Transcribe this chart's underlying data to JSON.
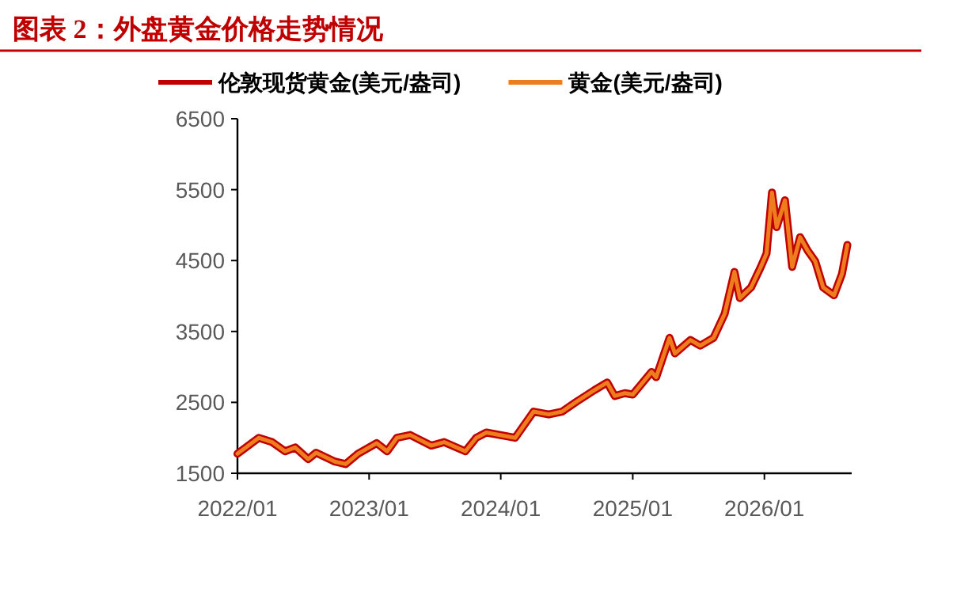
{
  "chart_data": {
    "type": "line",
    "title": "图表 2：外盘黄金价格走势情况",
    "x": [
      "2022-01-01",
      "2022-03-01",
      "2022-04-07",
      "2022-05-13",
      "2022-06-10",
      "2022-07-16",
      "2022-08-07",
      "2022-09-28",
      "2022-10-28",
      "2022-12-01",
      "2023-01-22",
      "2023-02-20",
      "2023-03-19",
      "2023-04-25",
      "2023-06-22",
      "2023-07-28",
      "2023-09-25",
      "2023-10-25",
      "2023-11-22",
      "2024-02-10",
      "2024-04-01",
      "2024-05-13",
      "2024-06-19",
      "2024-08-01",
      "2024-09-16",
      "2024-10-22",
      "2024-11-12",
      "2024-12-10",
      "2025-01-01",
      "2025-02-22",
      "2025-03-07",
      "2025-04-13",
      "2025-04-28",
      "2025-06-10",
      "2025-07-07",
      "2025-08-13",
      "2025-09-13",
      "2025-10-10",
      "2025-10-25",
      "2025-11-25",
      "2025-12-22",
      "2026-01-07",
      "2026-01-22",
      "2026-02-04",
      "2026-02-27",
      "2026-03-19",
      "2026-04-10",
      "2026-05-01",
      "2026-05-22",
      "2026-06-13",
      "2026-07-13",
      "2026-08-04",
      "2026-08-19"
    ],
    "series": [
      {
        "name": "伦敦现货黄金(美元/盎司)",
        "color": "#c00000",
        "values": [
          1775,
          2000,
          1940,
          1810,
          1865,
          1700,
          1790,
          1665,
          1630,
          1775,
          1925,
          1810,
          2000,
          2040,
          1890,
          1940,
          1810,
          2000,
          2075,
          2000,
          2370,
          2330,
          2370,
          2520,
          2670,
          2780,
          2590,
          2630,
          2610,
          2930,
          2855,
          3410,
          3190,
          3380,
          3300,
          3410,
          3750,
          4340,
          3970,
          4120,
          4410,
          4600,
          5460,
          4970,
          5350,
          4410,
          4830,
          4640,
          4490,
          4120,
          4010,
          4310,
          4720
        ]
      },
      {
        "name": "黄金(美元/盎司)",
        "color": "#ee7d1d",
        "values": [
          1775,
          2000,
          1940,
          1810,
          1865,
          1700,
          1790,
          1665,
          1630,
          1775,
          1925,
          1810,
          2000,
          2040,
          1890,
          1940,
          1810,
          2000,
          2075,
          2000,
          2370,
          2330,
          2370,
          2520,
          2670,
          2780,
          2590,
          2630,
          2610,
          2930,
          2855,
          3410,
          3190,
          3380,
          3300,
          3410,
          3750,
          4340,
          3970,
          4120,
          4410,
          4600,
          5460,
          4970,
          5350,
          4410,
          4830,
          4640,
          4490,
          4120,
          4010,
          4310,
          4720
        ]
      }
    ],
    "xlim": [
      "2022-01-01",
      "2026-08-31"
    ],
    "xticks": [
      {
        "value": "2022-01-01",
        "label": "2022/01"
      },
      {
        "value": "2023-01-01",
        "label": "2023/01"
      },
      {
        "value": "2024-01-01",
        "label": "2024/01"
      },
      {
        "value": "2025-01-01",
        "label": "2025/01"
      },
      {
        "value": "2026-01-01",
        "label": "2026/01"
      }
    ],
    "ylim": [
      1500,
      6500
    ],
    "yticks": [
      1500,
      2500,
      3500,
      4500,
      5500,
      6500
    ],
    "grid": false,
    "legend": "top",
    "marker": "none",
    "line_style": "solid"
  }
}
